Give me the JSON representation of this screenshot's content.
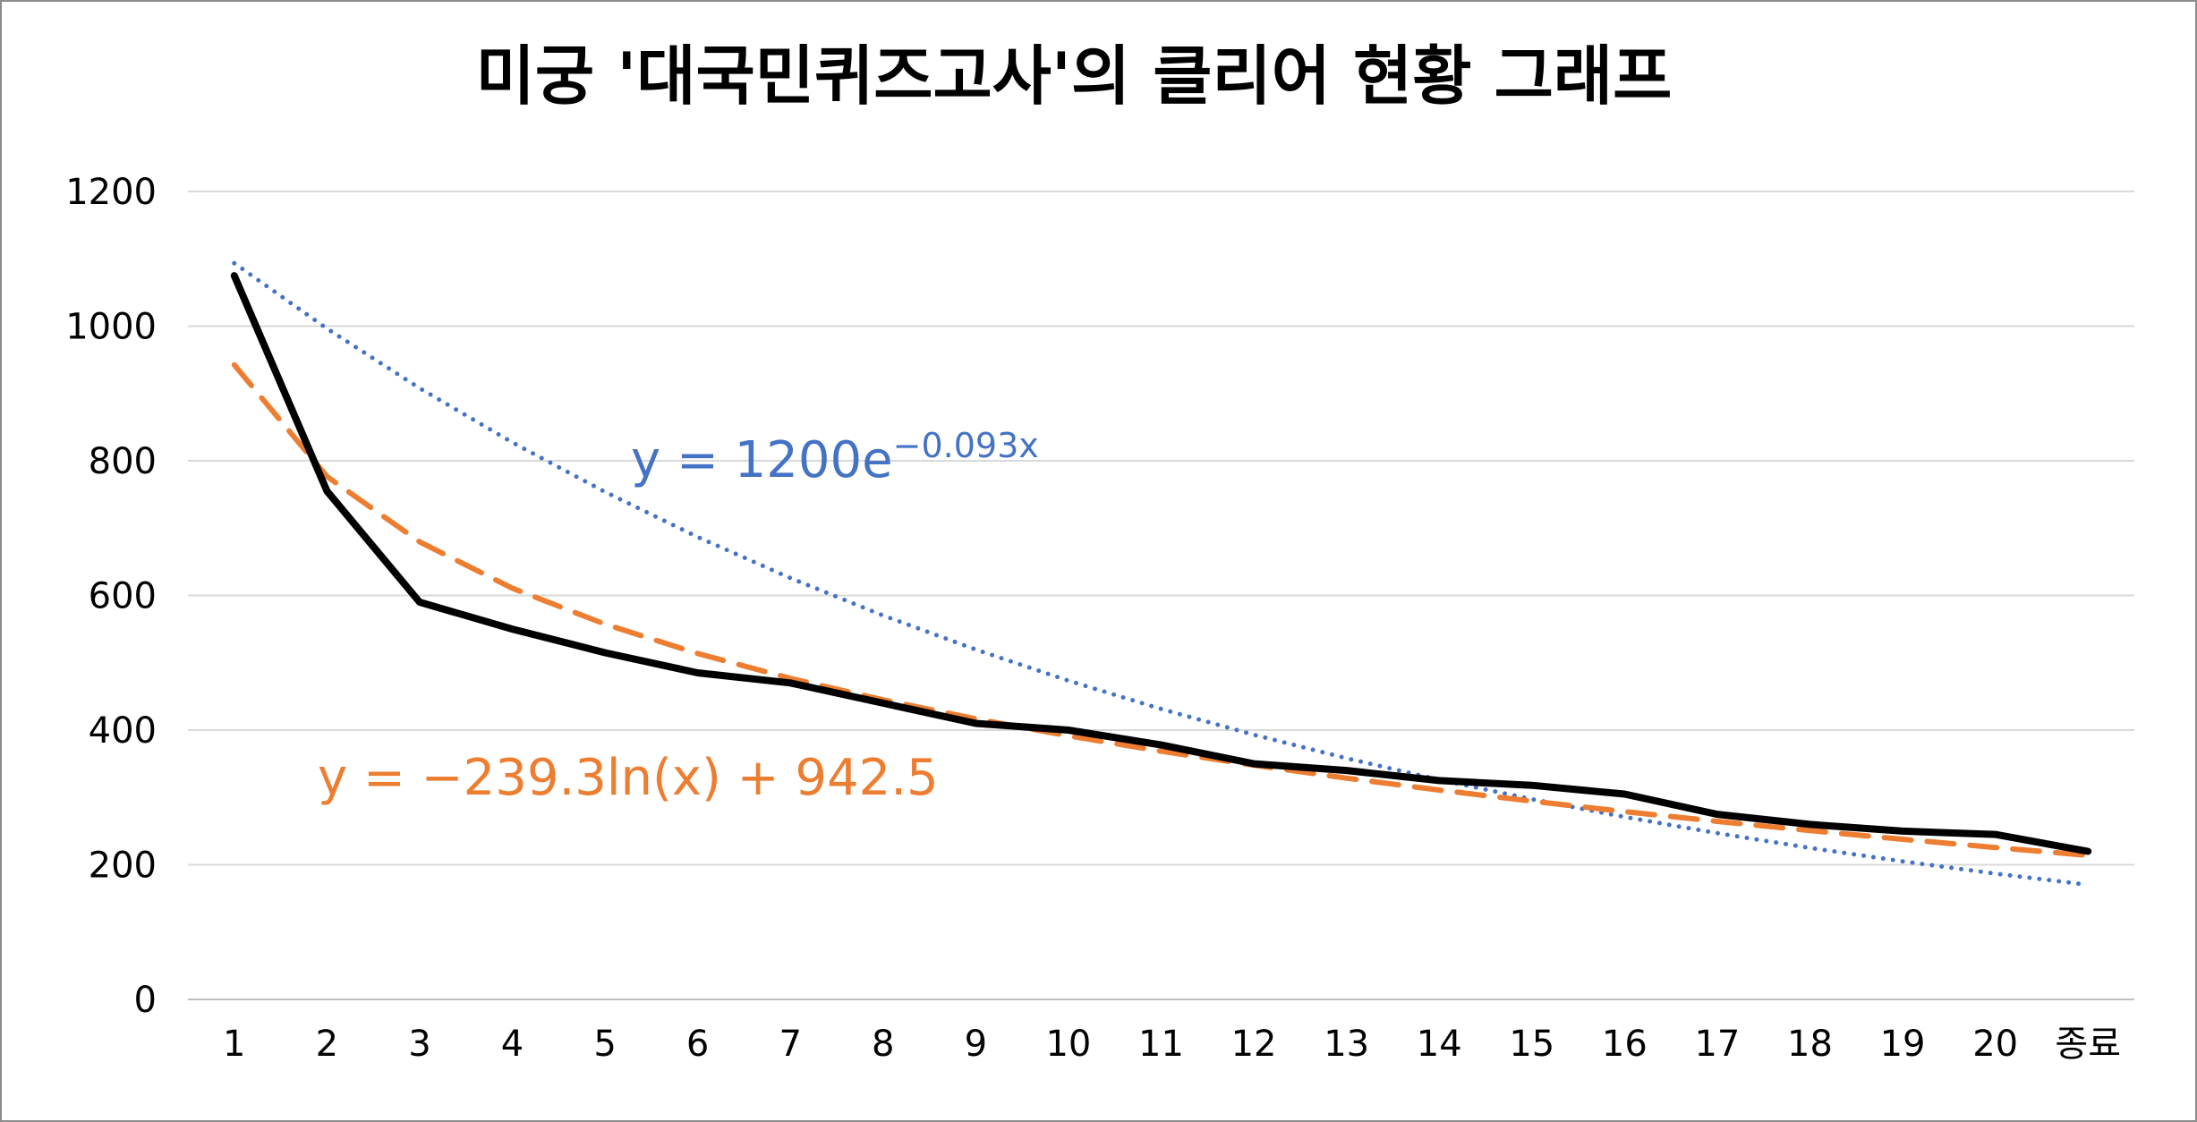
{
  "chart_data": {
    "type": "line",
    "title": "미궁 '대국민퀴즈고사'의 클리어 현황 그래프",
    "xlabel": "",
    "ylabel": "",
    "categories": [
      "1",
      "2",
      "3",
      "4",
      "5",
      "6",
      "7",
      "8",
      "9",
      "10",
      "11",
      "12",
      "13",
      "14",
      "15",
      "16",
      "17",
      "18",
      "19",
      "20",
      "종료"
    ],
    "ylim": [
      0,
      1200
    ],
    "yticks": [
      "0",
      "200",
      "400",
      "600",
      "800",
      "1000",
      "1200"
    ],
    "grid": true,
    "legend": "none",
    "series": [
      {
        "color": "#000000",
        "style": "solid",
        "values": [
          1075,
          755,
          590,
          550,
          515,
          485,
          470,
          440,
          410,
          400,
          378,
          350,
          340,
          325,
          318,
          305,
          275,
          260,
          250,
          245,
          220
        ]
      },
      {
        "color": "#ED7D31",
        "style": "dashed",
        "trendline": "logarithmic",
        "values": [
          942.5,
          776.6,
          679.6,
          610.8,
          557.4,
          513.7,
          476.8,
          444.9,
          416.7,
          391.5,
          368.7,
          347.9,
          328.7,
          311.0,
          294.5,
          279.0,
          264.5,
          250.8,
          237.9,
          225.6,
          214.0
        ]
      },
      {
        "color": "#4472C4",
        "style": "dotted",
        "trendline": "exponential",
        "values": [
          1093.4,
          996.3,
          907.8,
          827.2,
          753.7,
          686.8,
          625.8,
          570.2,
          519.6,
          473.4,
          431.4,
          393.1,
          358.1,
          326.3,
          297.4,
          270.9,
          246.9,
          225.0,
          205.0,
          186.8,
          170.2
        ]
      }
    ],
    "annotations": [
      {
        "series": 2,
        "color": "#4472C4",
        "text": "y = 1200e",
        "superscript": "−0.093x"
      },
      {
        "series": 1,
        "color": "#ED7D31",
        "text": "y = −239.3ln(x) + 942.5"
      }
    ]
  }
}
